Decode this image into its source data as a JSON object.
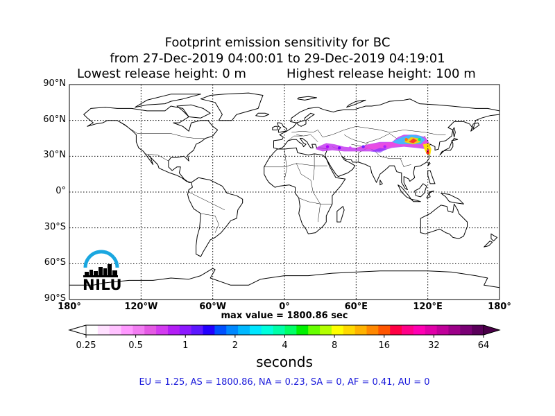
{
  "title": {
    "line1": "Footprint emission sensitivity for BC",
    "line2": "from 27-Dec-2019 04:00:01 to 29-Dec-2019 04:19:01",
    "line3_left": "Lowest release height: 0 m",
    "line3_right": "Highest release height: 100 m"
  },
  "chart_data": {
    "type": "heatmap",
    "map_projection": "equirectangular",
    "lon_range": [
      -180,
      180
    ],
    "lat_range": [
      -90,
      90
    ],
    "grid": true,
    "x_ticks": [
      "180°",
      "120°W",
      "60°W",
      "0°",
      "60°E",
      "120°E",
      "180°"
    ],
    "y_ticks": [
      "90°N",
      "60°N",
      "30°N",
      "0°",
      "30°S",
      "60°S",
      "90°S"
    ],
    "max_value_label": "max value = 1800.86 sec",
    "max_value": 1800.86,
    "colorbar": {
      "ticks": [
        "0.25",
        "0.5",
        "1",
        "2",
        "4",
        "8",
        "16",
        "32",
        "64"
      ],
      "unit": "seconds",
      "scale": "log"
    },
    "plume_extent_description": "Sensitivity footprint spanning from Mediterranean/Turkey region (~28°E) eastward over Central Asia to northern China and Korea (~125°E), between ~25°N and ~50°N, highest values over Mongolia / northern China."
  },
  "regional_totals": {
    "text": "EU = 1.25,  AS = 1800.86,  NA = 0.23,  SA = 0,  AF = 0.41,  AU = 0"
  },
  "logo": {
    "text": "NILU",
    "color": "#1aa7e0"
  },
  "colors": {
    "colorbar": [
      "#ffffff",
      "#ffe0ff",
      "#ffc2ff",
      "#ff99ff",
      "#f27df2",
      "#e45ae4",
      "#d33bf0",
      "#b31ef5",
      "#8c19ff",
      "#5c17ff",
      "#2200ff",
      "#0050ff",
      "#0088ff",
      "#00b8ff",
      "#00e6ff",
      "#00ffdd",
      "#00ffa8",
      "#00ff66",
      "#00f000",
      "#66ff00",
      "#b3ff00",
      "#ffff00",
      "#ffd900",
      "#ffb300",
      "#ff8800",
      "#ff5500",
      "#ff0044",
      "#ff0088",
      "#ff00b3",
      "#e000a8",
      "#c0009a",
      "#9c0088",
      "#7a0075",
      "#5a005a"
    ],
    "regions_text": "#1a1adb"
  }
}
